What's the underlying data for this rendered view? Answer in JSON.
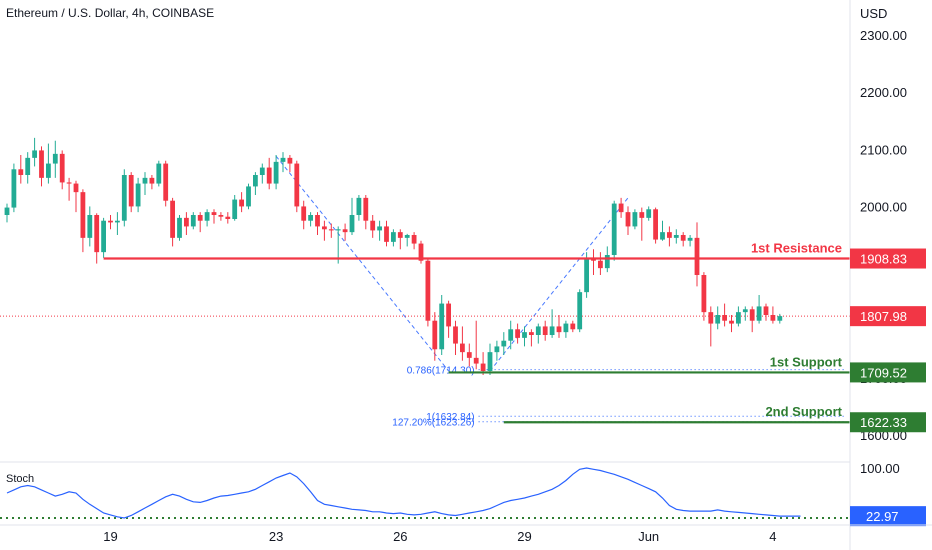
{
  "header": {
    "title": "Ethereum / U.S. Dollar, 4h, COINBASE"
  },
  "axis": {
    "currency": "USD",
    "x_ticks": [
      "19",
      "23",
      "26",
      "29",
      "Jun",
      "4"
    ]
  },
  "chart_data": [
    {
      "type": "candlestick",
      "title": "Ethereum / U.S. Dollar, 4h, COINBASE",
      "ylabel": "USD",
      "y_ticks": [
        1600,
        1700,
        1800,
        1900,
        2000,
        2100,
        2200,
        2300
      ],
      "y_tick_labels": [
        "1600.00",
        "1700.00",
        "1800.00",
        "1900.00",
        "2000.00",
        "2100.00",
        "2200.00",
        "2300.00"
      ],
      "ylim": [
        1575,
        2340
      ],
      "x_ticks": [
        {
          "label": "19",
          "index": 15
        },
        {
          "label": "23",
          "index": 39
        },
        {
          "label": "26",
          "index": 57
        },
        {
          "label": "29",
          "index": 75
        },
        {
          "label": "Jun",
          "index": 93
        },
        {
          "label": "4",
          "index": 111
        }
      ],
      "grid": false,
      "candles": [
        [
          1985,
          2005,
          1972,
          1998
        ],
        [
          1998,
          2075,
          1990,
          2065
        ],
        [
          2065,
          2090,
          2040,
          2055
        ],
        [
          2055,
          2095,
          2040,
          2085
        ],
        [
          2085,
          2120,
          2070,
          2098
        ],
        [
          2098,
          2105,
          2035,
          2050
        ],
        [
          2050,
          2110,
          2040,
          2075
        ],
        [
          2075,
          2115,
          2050,
          2092
        ],
        [
          2092,
          2098,
          2030,
          2042
        ],
        [
          2042,
          2050,
          2010,
          2040
        ],
        [
          2040,
          2045,
          1990,
          2025
        ],
        [
          2025,
          2030,
          1920,
          1945
        ],
        [
          1945,
          2000,
          1930,
          1985
        ],
        [
          1985,
          1988,
          1900,
          1920
        ],
        [
          1920,
          1980,
          1910,
          1975
        ],
        [
          1975,
          1985,
          1960,
          1972
        ],
        [
          1972,
          1990,
          1950,
          1975
        ],
        [
          1975,
          2065,
          1965,
          2055
        ],
        [
          2055,
          2060,
          1990,
          2000
        ],
        [
          2000,
          2050,
          1990,
          2040
        ],
        [
          2040,
          2060,
          2020,
          2050
        ],
        [
          2050,
          2055,
          2030,
          2040
        ],
        [
          2040,
          2080,
          2035,
          2075
        ],
        [
          2075,
          2080,
          2000,
          2010
        ],
        [
          2010,
          2015,
          1930,
          1945
        ],
        [
          1945,
          1985,
          1940,
          1980
        ],
        [
          1980,
          1990,
          1950,
          1965
        ],
        [
          1965,
          1990,
          1960,
          1985
        ],
        [
          1985,
          1990,
          1955,
          1975
        ],
        [
          1975,
          1995,
          1965,
          1990
        ],
        [
          1990,
          1995,
          1970,
          1985
        ],
        [
          1985,
          1990,
          1975,
          1982
        ],
        [
          1982,
          1990,
          1970,
          1978
        ],
        [
          1978,
          2020,
          1975,
          2012
        ],
        [
          2012,
          2025,
          1990,
          2000
        ],
        [
          2000,
          2040,
          1995,
          2035
        ],
        [
          2035,
          2060,
          2020,
          2055
        ],
        [
          2055,
          2075,
          2040,
          2068
        ],
        [
          2068,
          2085,
          2030,
          2040
        ],
        [
          2040,
          2090,
          2030,
          2078
        ],
        [
          2078,
          2095,
          2060,
          2085
        ],
        [
          2085,
          2090,
          2060,
          2075
        ],
        [
          2075,
          2080,
          1990,
          2000
        ],
        [
          2000,
          2010,
          1960,
          1975
        ],
        [
          1975,
          1990,
          1965,
          1985
        ],
        [
          1985,
          1990,
          1950,
          1965
        ],
        [
          1965,
          1975,
          1940,
          1960
        ],
        [
          1960,
          1970,
          1945,
          1958
        ],
        [
          1958,
          1965,
          1900,
          1960
        ],
        [
          1960,
          1970,
          1940,
          1955
        ],
        [
          1955,
          2015,
          1950,
          1985
        ],
        [
          1985,
          2020,
          1975,
          2015
        ],
        [
          2015,
          2020,
          1960,
          1975
        ],
        [
          1975,
          1985,
          1945,
          1958
        ],
        [
          1958,
          1975,
          1940,
          1965
        ],
        [
          1965,
          1975,
          1930,
          1938
        ],
        [
          1938,
          1960,
          1930,
          1955
        ],
        [
          1955,
          1960,
          1925,
          1945
        ],
        [
          1945,
          1952,
          1930,
          1950
        ],
        [
          1950,
          1955,
          1925,
          1935
        ],
        [
          1935,
          1940,
          1900,
          1905
        ],
        [
          1905,
          1910,
          1790,
          1800
        ],
        [
          1800,
          1815,
          1730,
          1750
        ],
        [
          1750,
          1845,
          1740,
          1830
        ],
        [
          1830,
          1835,
          1770,
          1790
        ],
        [
          1790,
          1800,
          1740,
          1760
        ],
        [
          1760,
          1790,
          1730,
          1745
        ],
        [
          1745,
          1760,
          1720,
          1735
        ],
        [
          1735,
          1800,
          1715,
          1725
        ],
        [
          1725,
          1745,
          1705,
          1712
        ],
        [
          1712,
          1760,
          1705,
          1745
        ],
        [
          1745,
          1765,
          1730,
          1755
        ],
        [
          1755,
          1780,
          1740,
          1765
        ],
        [
          1765,
          1800,
          1750,
          1785
        ],
        [
          1785,
          1795,
          1760,
          1770
        ],
        [
          1770,
          1790,
          1755,
          1780
        ],
        [
          1780,
          1785,
          1755,
          1775
        ],
        [
          1775,
          1795,
          1760,
          1790
        ],
        [
          1790,
          1800,
          1765,
          1775
        ],
        [
          1775,
          1820,
          1770,
          1790
        ],
        [
          1790,
          1810,
          1770,
          1780
        ],
        [
          1780,
          1800,
          1770,
          1795
        ],
        [
          1795,
          1800,
          1780,
          1785
        ],
        [
          1785,
          1855,
          1780,
          1850
        ],
        [
          1850,
          1920,
          1840,
          1910
        ],
        [
          1910,
          1925,
          1880,
          1905
        ],
        [
          1905,
          1920,
          1880,
          1892
        ],
        [
          1892,
          1930,
          1885,
          1915
        ],
        [
          1915,
          2010,
          1905,
          2005
        ],
        [
          2005,
          2015,
          1980,
          1990
        ],
        [
          1990,
          2000,
          1950,
          1965
        ],
        [
          1965,
          1995,
          1960,
          1990
        ],
        [
          1990,
          1998,
          1940,
          1980
        ],
        [
          1980,
          2000,
          1975,
          1995
        ],
        [
          1995,
          1998,
          1935,
          1942
        ],
        [
          1942,
          1975,
          1940,
          1955
        ],
        [
          1955,
          1965,
          1930,
          1945
        ],
        [
          1945,
          1960,
          1935,
          1950
        ],
        [
          1950,
          1955,
          1930,
          1940
        ],
        [
          1940,
          1950,
          1930,
          1945
        ],
        [
          1945,
          1972,
          1860,
          1880
        ],
        [
          1880,
          1885,
          1800,
          1815
        ],
        [
          1815,
          1825,
          1755,
          1795
        ],
        [
          1795,
          1825,
          1785,
          1810
        ],
        [
          1810,
          1830,
          1790,
          1800
        ],
        [
          1800,
          1810,
          1780,
          1795
        ],
        [
          1795,
          1825,
          1790,
          1815
        ],
        [
          1815,
          1825,
          1800,
          1820
        ],
        [
          1820,
          1825,
          1780,
          1800
        ],
        [
          1800,
          1845,
          1795,
          1825
        ],
        [
          1825,
          1830,
          1800,
          1810
        ],
        [
          1810,
          1825,
          1795,
          1800
        ],
        [
          1800,
          1812,
          1795,
          1808
        ]
      ],
      "current_price": 1807.98,
      "levels": [
        {
          "name": "1st Resistance",
          "value": 1908.83,
          "label": "1908.83",
          "start_index": 14,
          "color": "#f23645"
        },
        {
          "name": "1st Support",
          "value": 1709.52,
          "label": "1709.52",
          "start_index": 64,
          "color": "#2e7d32"
        },
        {
          "name": "2nd Support",
          "value": 1622.33,
          "label": "1622.33",
          "start_index": 72,
          "color": "#2e7d32"
        }
      ],
      "fib_annotations": [
        {
          "label": "0.786(1714.30)",
          "value": 1714.3,
          "end_index": 64
        },
        {
          "label": "1(1632.84)",
          "value": 1632.84,
          "end_index": 64
        },
        {
          "label": "127.20%(1623.26)",
          "value": 1623.26,
          "end_index": 64
        }
      ],
      "trend_lines": [
        {
          "from_index": 39,
          "from_value": 2088,
          "to_index": 64,
          "to_value": 1712
        },
        {
          "from_index": 70,
          "from_value": 1712,
          "to_index": 90,
          "to_value": 2015
        }
      ],
      "colors": {
        "up": "#22ab94",
        "down": "#f23645",
        "fib": "#2962ff",
        "price_line": "#f23645"
      }
    },
    {
      "type": "line",
      "title": "Stoch",
      "y_ticks": [
        100
      ],
      "y_tick_labels": [
        "100.00"
      ],
      "ylim": [
        15,
        105
      ],
      "values": [
        60,
        65,
        70,
        72,
        70,
        65,
        60,
        55,
        58,
        62,
        60,
        50,
        42,
        35,
        28,
        25,
        22,
        20,
        24,
        30,
        36,
        42,
        48,
        54,
        58,
        55,
        50,
        46,
        45,
        48,
        52,
        55,
        56,
        58,
        60,
        62,
        66,
        72,
        78,
        84,
        88,
        92,
        86,
        75,
        62,
        48,
        42,
        40,
        38,
        36,
        34,
        33,
        32,
        30,
        30,
        28,
        27,
        28,
        26,
        25,
        26,
        28,
        30,
        27,
        25,
        24,
        26,
        28,
        30,
        32,
        35,
        40,
        45,
        48,
        50,
        52,
        55,
        58,
        62,
        66,
        72,
        80,
        90,
        98,
        100,
        98,
        96,
        93,
        90,
        86,
        82,
        77,
        72,
        67,
        62,
        52,
        40,
        34,
        32,
        31,
        31,
        31,
        31,
        33,
        31,
        30,
        29,
        28,
        27,
        26,
        25,
        24,
        23,
        23,
        23,
        22.97
      ],
      "current_value": 22.97,
      "current_label": "22.97",
      "reference_line": 20,
      "colors": {
        "line": "#2962ff",
        "reference": "#2e7d32",
        "badge": "#2962ff"
      }
    }
  ]
}
